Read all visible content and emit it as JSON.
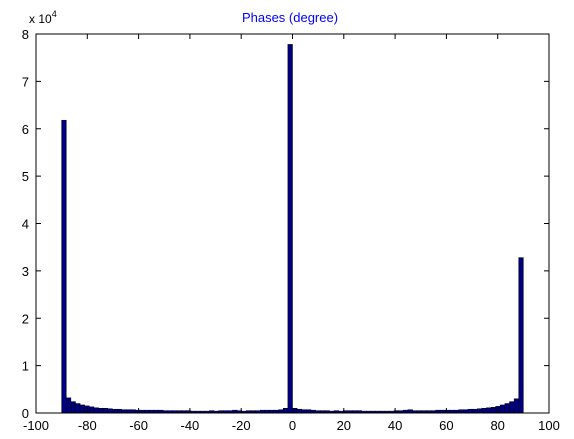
{
  "chart_data": {
    "type": "bar",
    "title": "Phases (degree)",
    "xlabel": "",
    "ylabel": "",
    "y_multiplier_label": "x 10",
    "y_multiplier_exponent": "4",
    "xlim": [
      -100,
      100
    ],
    "ylim": [
      0,
      8
    ],
    "x_ticks": [
      -100,
      -80,
      -60,
      -40,
      -20,
      0,
      20,
      40,
      60,
      80,
      100
    ],
    "x_tick_labels": [
      "-100",
      "-80",
      "-60",
      "-40",
      "-20",
      "0",
      "20",
      "40",
      "60",
      "80",
      "100"
    ],
    "y_ticks": [
      0,
      1,
      2,
      3,
      4,
      5,
      6,
      7,
      8
    ],
    "y_tick_labels": [
      "0",
      "1",
      "2",
      "3",
      "4",
      "5",
      "6",
      "7",
      "8"
    ],
    "bin_width": 1.8,
    "bin_centers": [
      -89.1,
      -87.3,
      -85.5,
      -83.7,
      -81.9,
      -80.1,
      -78.3,
      -76.5,
      -74.7,
      -72.9,
      -71.1,
      -69.3,
      -67.5,
      -65.7,
      -63.9,
      -62.1,
      -60.3,
      -58.5,
      -56.7,
      -54.9,
      -53.1,
      -51.3,
      -49.5,
      -47.7,
      -45.9,
      -44.1,
      -42.3,
      -40.5,
      -38.7,
      -36.9,
      -35.1,
      -33.3,
      -31.5,
      -29.7,
      -27.9,
      -26.1,
      -24.3,
      -22.5,
      -20.7,
      -18.9,
      -17.1,
      -15.3,
      -13.5,
      -11.7,
      -9.9,
      -8.1,
      -6.3,
      -4.5,
      -2.7,
      -0.9,
      0.9,
      2.7,
      4.5,
      6.3,
      8.1,
      9.9,
      11.7,
      13.5,
      15.3,
      17.1,
      18.9,
      20.7,
      22.5,
      24.3,
      26.1,
      27.9,
      29.7,
      31.5,
      33.3,
      35.1,
      36.9,
      38.7,
      40.5,
      42.3,
      44.1,
      45.9,
      47.7,
      49.5,
      51.3,
      53.1,
      54.9,
      56.7,
      58.5,
      60.3,
      62.1,
      63.9,
      65.7,
      67.5,
      69.3,
      71.1,
      72.9,
      74.7,
      76.5,
      78.3,
      80.1,
      81.9,
      83.7,
      85.5,
      87.3,
      89.1
    ],
    "values": [
      6.18,
      0.32,
      0.24,
      0.2,
      0.17,
      0.15,
      0.13,
      0.11,
      0.1,
      0.1,
      0.09,
      0.08,
      0.08,
      0.07,
      0.07,
      0.07,
      0.06,
      0.06,
      0.06,
      0.06,
      0.06,
      0.06,
      0.05,
      0.05,
      0.05,
      0.05,
      0.05,
      0.05,
      0.04,
      0.04,
      0.04,
      0.04,
      0.05,
      0.04,
      0.05,
      0.05,
      0.05,
      0.06,
      0.05,
      0.04,
      0.05,
      0.05,
      0.05,
      0.06,
      0.06,
      0.06,
      0.06,
      0.07,
      0.1,
      7.78,
      0.1,
      0.08,
      0.07,
      0.07,
      0.06,
      0.05,
      0.05,
      0.05,
      0.04,
      0.05,
      0.04,
      0.05,
      0.05,
      0.05,
      0.05,
      0.04,
      0.04,
      0.04,
      0.04,
      0.04,
      0.04,
      0.04,
      0.05,
      0.05,
      0.06,
      0.07,
      0.05,
      0.05,
      0.05,
      0.05,
      0.05,
      0.06,
      0.06,
      0.06,
      0.06,
      0.06,
      0.07,
      0.07,
      0.08,
      0.08,
      0.09,
      0.1,
      0.11,
      0.12,
      0.14,
      0.17,
      0.2,
      0.24,
      0.3,
      3.28
    ],
    "bar_color": "#00007f",
    "edge_color": "#000000",
    "title_color": "#0000ff",
    "grid": false,
    "legend": "none"
  }
}
